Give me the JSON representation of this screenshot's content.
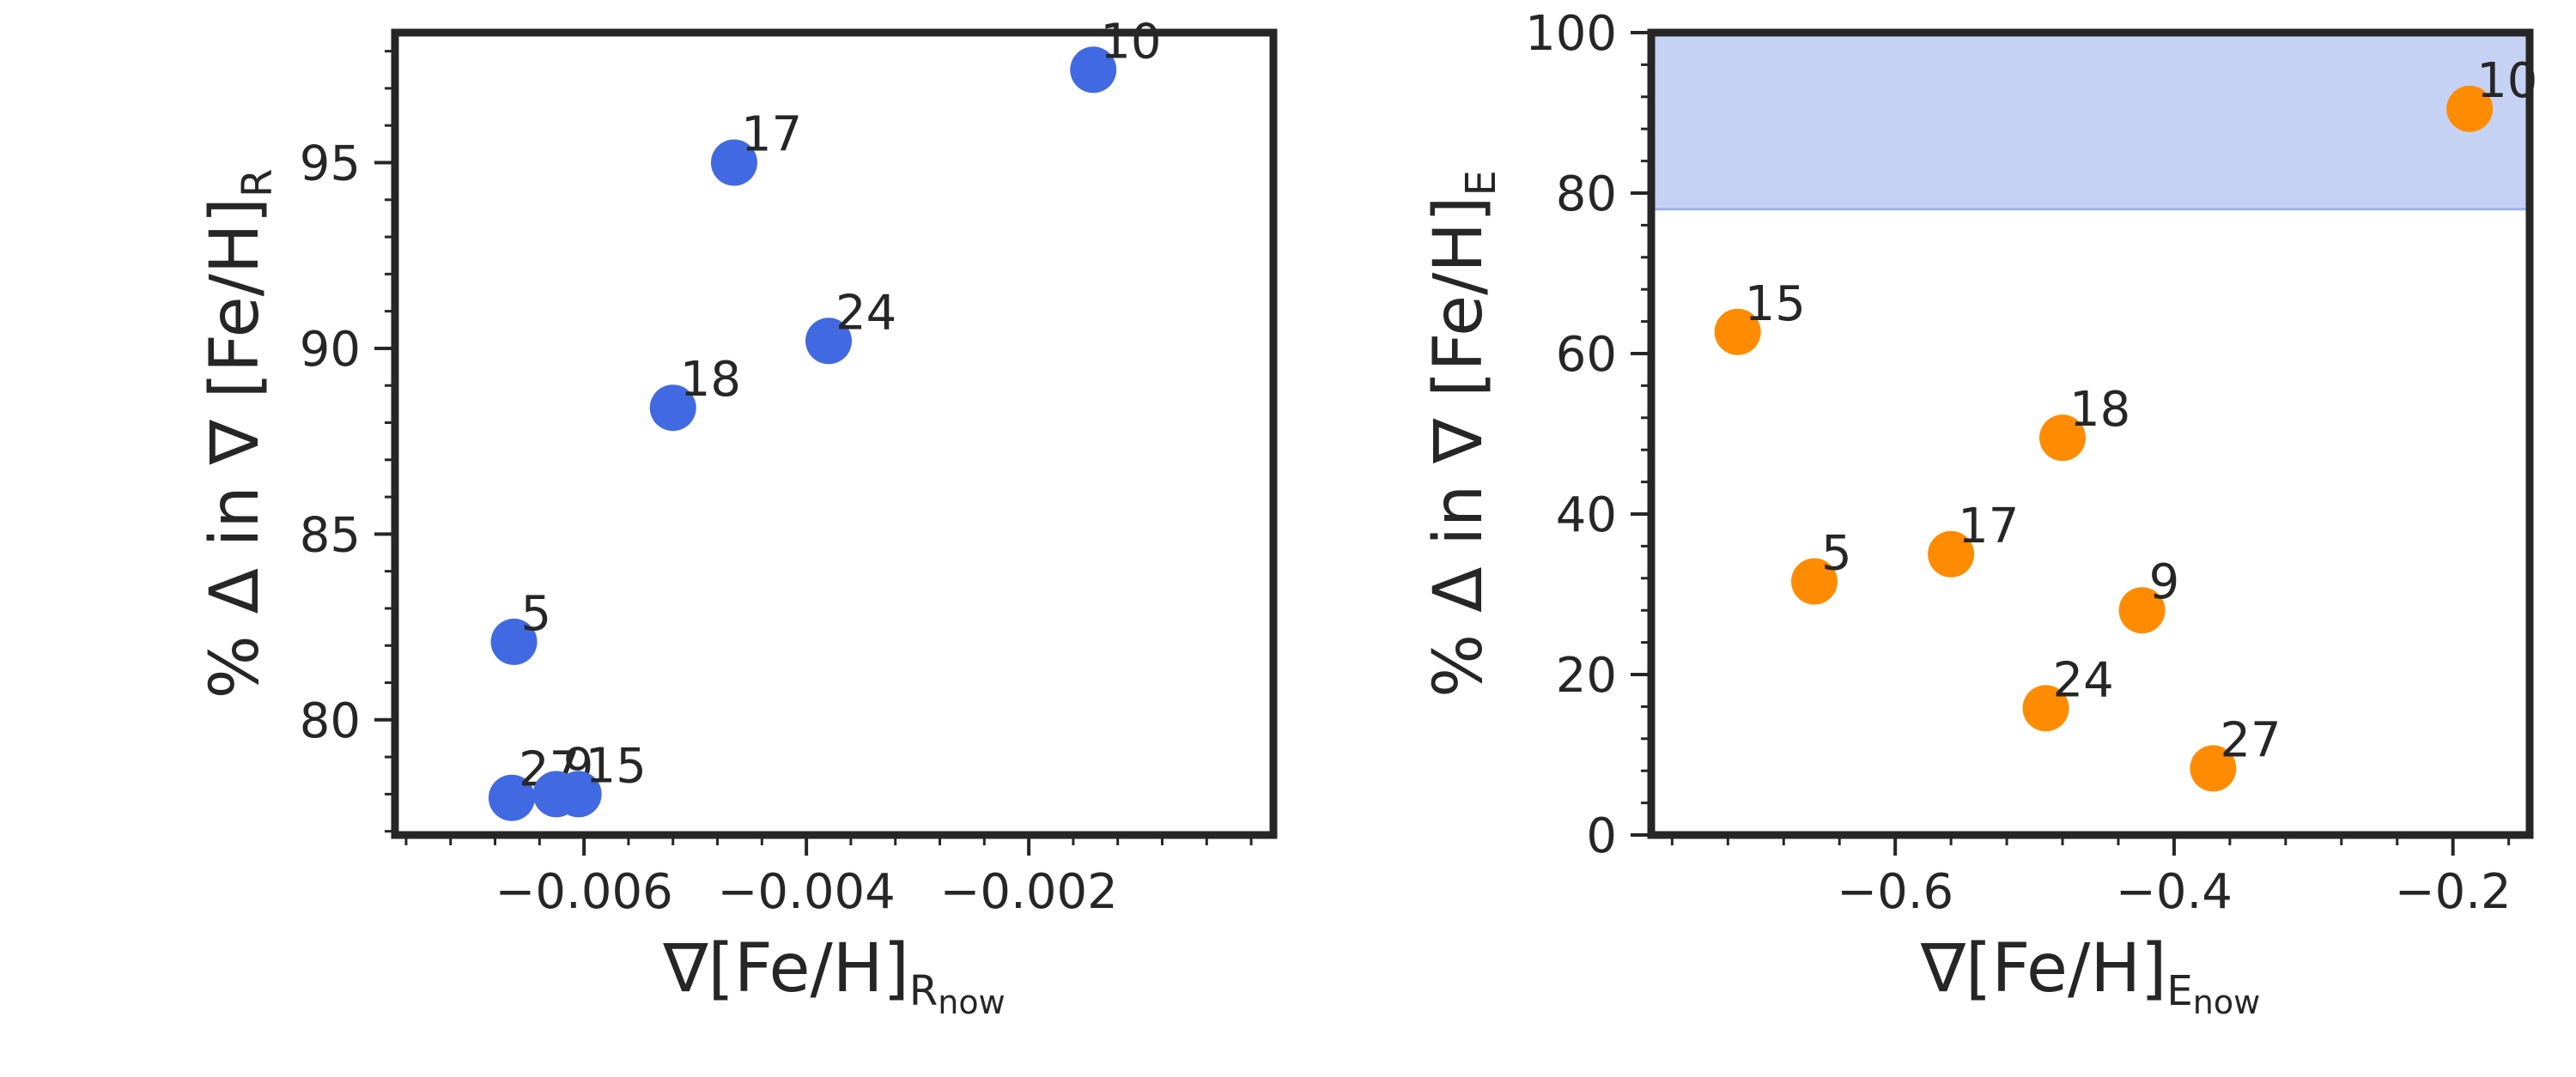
{
  "chart_data": [
    {
      "type": "scatter",
      "xlabel": "∇[Fe/H]",
      "xlabel_sub": "R",
      "xlabel_subsub": "now",
      "ylabel": "% Δ in ∇ [Fe/H]",
      "ylabel_sub": "R",
      "xlim": [
        -0.0077,
        0.0002
      ],
      "ylim": [
        76.9,
        98.5
      ],
      "xticks": [
        -0.006,
        -0.004,
        -0.002
      ],
      "xtick_labels": [
        "−0.006",
        "−0.004",
        "−0.002"
      ],
      "yticks": [
        80,
        85,
        90,
        95
      ],
      "ytick_labels": [
        "80",
        "85",
        "90",
        "95"
      ],
      "color": "#4169e1",
      "grid": false,
      "points": [
        {
          "label": "10",
          "x": -0.00142,
          "y": 97.5
        },
        {
          "label": "17",
          "x": -0.00465,
          "y": 95.0
        },
        {
          "label": "24",
          "x": -0.0038,
          "y": 90.2
        },
        {
          "label": "18",
          "x": -0.0052,
          "y": 88.4
        },
        {
          "label": "5",
          "x": -0.00663,
          "y": 82.1
        },
        {
          "label": "27",
          "x": -0.00665,
          "y": 77.9
        },
        {
          "label": "9",
          "x": -0.00625,
          "y": 78.0
        },
        {
          "label": "15",
          "x": -0.00605,
          "y": 78.0
        }
      ]
    },
    {
      "type": "scatter",
      "xlabel": "∇[Fe/H]",
      "xlabel_sub": "E",
      "xlabel_subsub": "now",
      "ylabel": "% Δ in ∇ [Fe/H]",
      "ylabel_sub": "E",
      "xlim": [
        -0.775,
        -0.145
      ],
      "ylim": [
        0,
        100
      ],
      "xticks": [
        -0.6,
        -0.4,
        -0.2
      ],
      "xtick_labels": [
        "−0.6",
        "−0.4",
        "−0.2"
      ],
      "yticks": [
        0,
        20,
        40,
        60,
        80,
        100
      ],
      "ytick_labels": [
        "0",
        "20",
        "40",
        "60",
        "80",
        "100"
      ],
      "color": "#ff8c00",
      "shaded_band": {
        "y_from": 78,
        "y_to": 100,
        "color": "#c5d2f4"
      },
      "grid": false,
      "points": [
        {
          "label": "10",
          "x": -0.188,
          "y": 90.5
        },
        {
          "label": "15",
          "x": -0.713,
          "y": 62.7
        },
        {
          "label": "18",
          "x": -0.48,
          "y": 49.5
        },
        {
          "label": "17",
          "x": -0.56,
          "y": 35.0
        },
        {
          "label": "5",
          "x": -0.658,
          "y": 31.6
        },
        {
          "label": "9",
          "x": -0.423,
          "y": 28.0
        },
        {
          "label": "24",
          "x": -0.492,
          "y": 15.8
        },
        {
          "label": "27",
          "x": -0.372,
          "y": 8.3
        }
      ]
    }
  ]
}
